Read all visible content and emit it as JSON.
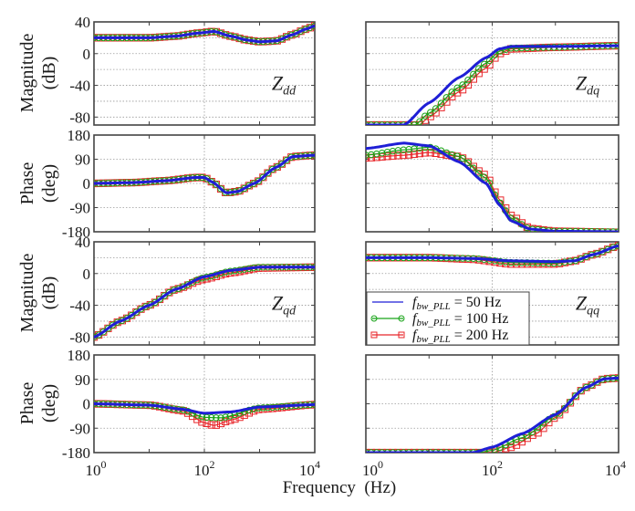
{
  "chart_data": {
    "type": "line",
    "title": "",
    "xlabel": "Frequency  (Hz)",
    "xscale": "log",
    "xlim": [
      1,
      10000
    ],
    "x_ticks": [
      {
        "v": 1,
        "base": "10",
        "exp": "0"
      },
      {
        "v": 100,
        "base": "10",
        "exp": "2"
      },
      {
        "v": 10000,
        "base": "10",
        "exp": "4"
      }
    ],
    "grid": true,
    "colors": {
      "s50": "#1f1fd6",
      "s100": "#17a317",
      "s200": "#e8262a",
      "axis": "#444444",
      "grid": "#9a9a9a"
    },
    "legend": {
      "placement": "inside Zqq magnitude panel, bottom-left",
      "entries": [
        {
          "key": "s50",
          "prefix": "f",
          "sub": "bw_PLL",
          "suffix": " = 50 Hz",
          "marker": "none"
        },
        {
          "key": "s100",
          "prefix": "f",
          "sub": "bw_PLL",
          "suffix": " = 100 Hz",
          "marker": "circle"
        },
        {
          "key": "s200",
          "prefix": "f",
          "sub": "bw_PLL",
          "suffix": " = 200 Hz",
          "marker": "square"
        }
      ]
    },
    "row_labels": [
      {
        "line1": "Magnitude",
        "line2": "(dB)"
      },
      {
        "line1": "Phase",
        "line2": "(deg)"
      },
      {
        "line1": "Magnitude",
        "line2": "(dB)"
      },
      {
        "line1": "Phase",
        "line2": "(deg)"
      }
    ],
    "panels": [
      {
        "id": "Zdd-mag",
        "row": 0,
        "col": 0,
        "kind": "mag",
        "ylim": [
          -90,
          40
        ],
        "yticks": [
          40,
          0,
          -40,
          -80
        ],
        "label": "Z",
        "label_sub": "dd",
        "series": {
          "s50": [
            [
              1,
              20
            ],
            [
              3,
              20
            ],
            [
              10,
              20
            ],
            [
              30,
              22
            ],
            [
              80,
              26
            ],
            [
              150,
              28
            ],
            [
              300,
              22
            ],
            [
              600,
              17
            ],
            [
              1000,
              15
            ],
            [
              2000,
              16
            ],
            [
              4000,
              24
            ],
            [
              7000,
              31
            ],
            [
              10000,
              35
            ]
          ],
          "s100": [
            [
              1,
              20
            ],
            [
              3,
              20
            ],
            [
              10,
              20
            ],
            [
              30,
              22
            ],
            [
              80,
              26
            ],
            [
              150,
              28
            ],
            [
              300,
              22
            ],
            [
              600,
              17
            ],
            [
              1000,
              15
            ],
            [
              2000,
              16
            ],
            [
              4000,
              24
            ],
            [
              7000,
              31
            ],
            [
              10000,
              35
            ]
          ],
          "s200": [
            [
              1,
              20
            ],
            [
              3,
              20
            ],
            [
              10,
              20
            ],
            [
              30,
              22
            ],
            [
              80,
              26
            ],
            [
              150,
              28
            ],
            [
              300,
              22
            ],
            [
              600,
              17
            ],
            [
              1000,
              15
            ],
            [
              2000,
              16
            ],
            [
              4000,
              24
            ],
            [
              7000,
              31
            ],
            [
              10000,
              35
            ]
          ]
        }
      },
      {
        "id": "Zdq-mag",
        "row": 0,
        "col": 1,
        "kind": "mag",
        "ylim": [
          -90,
          40
        ],
        "yticks": [
          40,
          0,
          -40,
          -80
        ],
        "label": "Z",
        "label_sub": "dq",
        "series": {
          "s50": [
            [
              4,
              -90
            ],
            [
              10,
              -62
            ],
            [
              30,
              -30
            ],
            [
              80,
              -5
            ],
            [
              130,
              6
            ],
            [
              200,
              9
            ],
            [
              1000,
              9
            ],
            [
              10000,
              10
            ]
          ],
          "s100": [
            [
              6,
              -90
            ],
            [
              10,
              -75
            ],
            [
              30,
              -42
            ],
            [
              80,
              -12
            ],
            [
              130,
              3
            ],
            [
              200,
              7
            ],
            [
              1000,
              8
            ],
            [
              10000,
              10
            ]
          ],
          "s200": [
            [
              7,
              -90
            ],
            [
              10,
              -80
            ],
            [
              30,
              -48
            ],
            [
              80,
              -18
            ],
            [
              130,
              0
            ],
            [
              200,
              6
            ],
            [
              1000,
              8
            ],
            [
              10000,
              10
            ]
          ]
        }
      },
      {
        "id": "Zdd-phase",
        "row": 1,
        "col": 0,
        "kind": "phase",
        "ylim": [
          -180,
          180
        ],
        "yticks": [
          180,
          90,
          0,
          -90,
          -180
        ],
        "series": {
          "s50": [
            [
              1,
              0
            ],
            [
              5,
              3
            ],
            [
              20,
              10
            ],
            [
              70,
              22
            ],
            [
              100,
              22
            ],
            [
              140,
              5
            ],
            [
              250,
              -35
            ],
            [
              400,
              -30
            ],
            [
              800,
              0
            ],
            [
              2000,
              60
            ],
            [
              4000,
              100
            ],
            [
              10000,
              105
            ]
          ],
          "s100": [
            [
              1,
              0
            ],
            [
              5,
              3
            ],
            [
              20,
              10
            ],
            [
              70,
              22
            ],
            [
              100,
              22
            ],
            [
              140,
              5
            ],
            [
              250,
              -35
            ],
            [
              400,
              -30
            ],
            [
              800,
              0
            ],
            [
              2000,
              60
            ],
            [
              4000,
              100
            ],
            [
              10000,
              105
            ]
          ],
          "s200": [
            [
              1,
              0
            ],
            [
              5,
              3
            ],
            [
              20,
              10
            ],
            [
              70,
              22
            ],
            [
              100,
              22
            ],
            [
              140,
              5
            ],
            [
              250,
              -35
            ],
            [
              400,
              -30
            ],
            [
              800,
              0
            ],
            [
              2000,
              60
            ],
            [
              4000,
              100
            ],
            [
              10000,
              105
            ]
          ]
        }
      },
      {
        "id": "Zdq-phase",
        "row": 1,
        "col": 1,
        "kind": "phase",
        "ylim": [
          -180,
          180
        ],
        "yticks": [
          180,
          90,
          0,
          -90,
          -180
        ],
        "series": {
          "s50": [
            [
              1,
              130
            ],
            [
              4,
              150
            ],
            [
              10,
              140
            ],
            [
              30,
              80
            ],
            [
              80,
              0
            ],
            [
              130,
              -80
            ],
            [
              200,
              -140
            ],
            [
              400,
              -170
            ],
            [
              1000,
              -178
            ],
            [
              10000,
              -180
            ]
          ],
          "s100": [
            [
              1,
              105
            ],
            [
              4,
              125
            ],
            [
              10,
              135
            ],
            [
              30,
              100
            ],
            [
              80,
              20
            ],
            [
              130,
              -70
            ],
            [
              200,
              -130
            ],
            [
              400,
              -170
            ],
            [
              1000,
              -178
            ],
            [
              10000,
              -180
            ]
          ],
          "s200": [
            [
              1,
              95
            ],
            [
              4,
              105
            ],
            [
              10,
              115
            ],
            [
              30,
              100
            ],
            [
              80,
              30
            ],
            [
              130,
              -60
            ],
            [
              200,
              -120
            ],
            [
              400,
              -168
            ],
            [
              1000,
              -178
            ],
            [
              10000,
              -182
            ]
          ]
        }
      },
      {
        "id": "Zqd-mag",
        "row": 2,
        "col": 0,
        "kind": "mag",
        "ylim": [
          -90,
          40
        ],
        "yticks": [
          40,
          0,
          -40,
          -80
        ],
        "label": "Z",
        "label_sub": "qd",
        "series": {
          "s50": [
            [
              1,
              -80
            ],
            [
              3,
              -60
            ],
            [
              10,
              -40
            ],
            [
              30,
              -20
            ],
            [
              100,
              -4
            ],
            [
              300,
              4
            ],
            [
              1000,
              8
            ],
            [
              10000,
              8
            ]
          ],
          "s100": [
            [
              1,
              -80
            ],
            [
              3,
              -60
            ],
            [
              10,
              -40
            ],
            [
              30,
              -20
            ],
            [
              100,
              -5
            ],
            [
              300,
              3
            ],
            [
              1000,
              8
            ],
            [
              10000,
              8
            ]
          ],
          "s200": [
            [
              1,
              -80
            ],
            [
              3,
              -60
            ],
            [
              10,
              -40
            ],
            [
              30,
              -20
            ],
            [
              100,
              -7
            ],
            [
              300,
              1
            ],
            [
              1000,
              7
            ],
            [
              10000,
              8
            ]
          ]
        }
      },
      {
        "id": "Zqq-mag",
        "row": 2,
        "col": 1,
        "kind": "mag",
        "ylim": [
          -90,
          40
        ],
        "yticks": [
          40,
          0,
          -40,
          -80
        ],
        "label": "Z",
        "label_sub": "qq",
        "series": {
          "s50": [
            [
              1,
              20
            ],
            [
              10,
              20
            ],
            [
              50,
              19
            ],
            [
              200,
              16
            ],
            [
              1000,
              15
            ],
            [
              2000,
              16
            ],
            [
              4000,
              24
            ],
            [
              10000,
              35
            ]
          ],
          "s100": [
            [
              1,
              20
            ],
            [
              10,
              20
            ],
            [
              50,
              19
            ],
            [
              200,
              14
            ],
            [
              1000,
              13
            ],
            [
              2000,
              16
            ],
            [
              4000,
              24
            ],
            [
              10000,
              35
            ]
          ],
          "s200": [
            [
              1,
              20
            ],
            [
              10,
              20
            ],
            [
              50,
              18
            ],
            [
              200,
              12
            ],
            [
              1000,
              12
            ],
            [
              2000,
              16
            ],
            [
              4000,
              24
            ],
            [
              10000,
              35
            ]
          ]
        }
      },
      {
        "id": "Zqd-phase",
        "row": 3,
        "col": 0,
        "kind": "phase",
        "ylim": [
          -180,
          180
        ],
        "yticks": [
          180,
          90,
          0,
          -90,
          -180
        ],
        "series": {
          "s50": [
            [
              1,
              0
            ],
            [
              10,
              -5
            ],
            [
              40,
              -20
            ],
            [
              100,
              -35
            ],
            [
              300,
              -30
            ],
            [
              1000,
              -12
            ],
            [
              10000,
              -3
            ]
          ],
          "s100": [
            [
              1,
              0
            ],
            [
              10,
              -5
            ],
            [
              40,
              -22
            ],
            [
              100,
              -50
            ],
            [
              200,
              -52
            ],
            [
              1000,
              -15
            ],
            [
              10000,
              -3
            ]
          ],
          "s200": [
            [
              1,
              0
            ],
            [
              10,
              -5
            ],
            [
              40,
              -25
            ],
            [
              100,
              -70
            ],
            [
              150,
              -80
            ],
            [
              300,
              -60
            ],
            [
              1000,
              -20
            ],
            [
              10000,
              -3
            ]
          ]
        }
      },
      {
        "id": "Zqq-phase",
        "row": 3,
        "col": 1,
        "kind": "phase",
        "ylim": [
          -180,
          180
        ],
        "yticks": [
          180,
          90,
          0,
          -90,
          -180
        ],
        "series": {
          "s50": [
            [
              1,
              -180
            ],
            [
              50,
              -180
            ],
            [
              100,
              -160
            ],
            [
              300,
              -110
            ],
            [
              1000,
              -40
            ],
            [
              3000,
              60
            ],
            [
              6000,
              92
            ],
            [
              10000,
              95
            ]
          ],
          "s100": [
            [
              1,
              -180
            ],
            [
              60,
              -180
            ],
            [
              100,
              -172
            ],
            [
              300,
              -125
            ],
            [
              1000,
              -45
            ],
            [
              3000,
              60
            ],
            [
              6000,
              92
            ],
            [
              10000,
              95
            ]
          ],
          "s200": [
            [
              1,
              -180
            ],
            [
              100,
              -180
            ],
            [
              200,
              -160
            ],
            [
              500,
              -110
            ],
            [
              1000,
              -50
            ],
            [
              3000,
              60
            ],
            [
              6000,
              92
            ],
            [
              10000,
              95
            ]
          ]
        }
      }
    ]
  }
}
